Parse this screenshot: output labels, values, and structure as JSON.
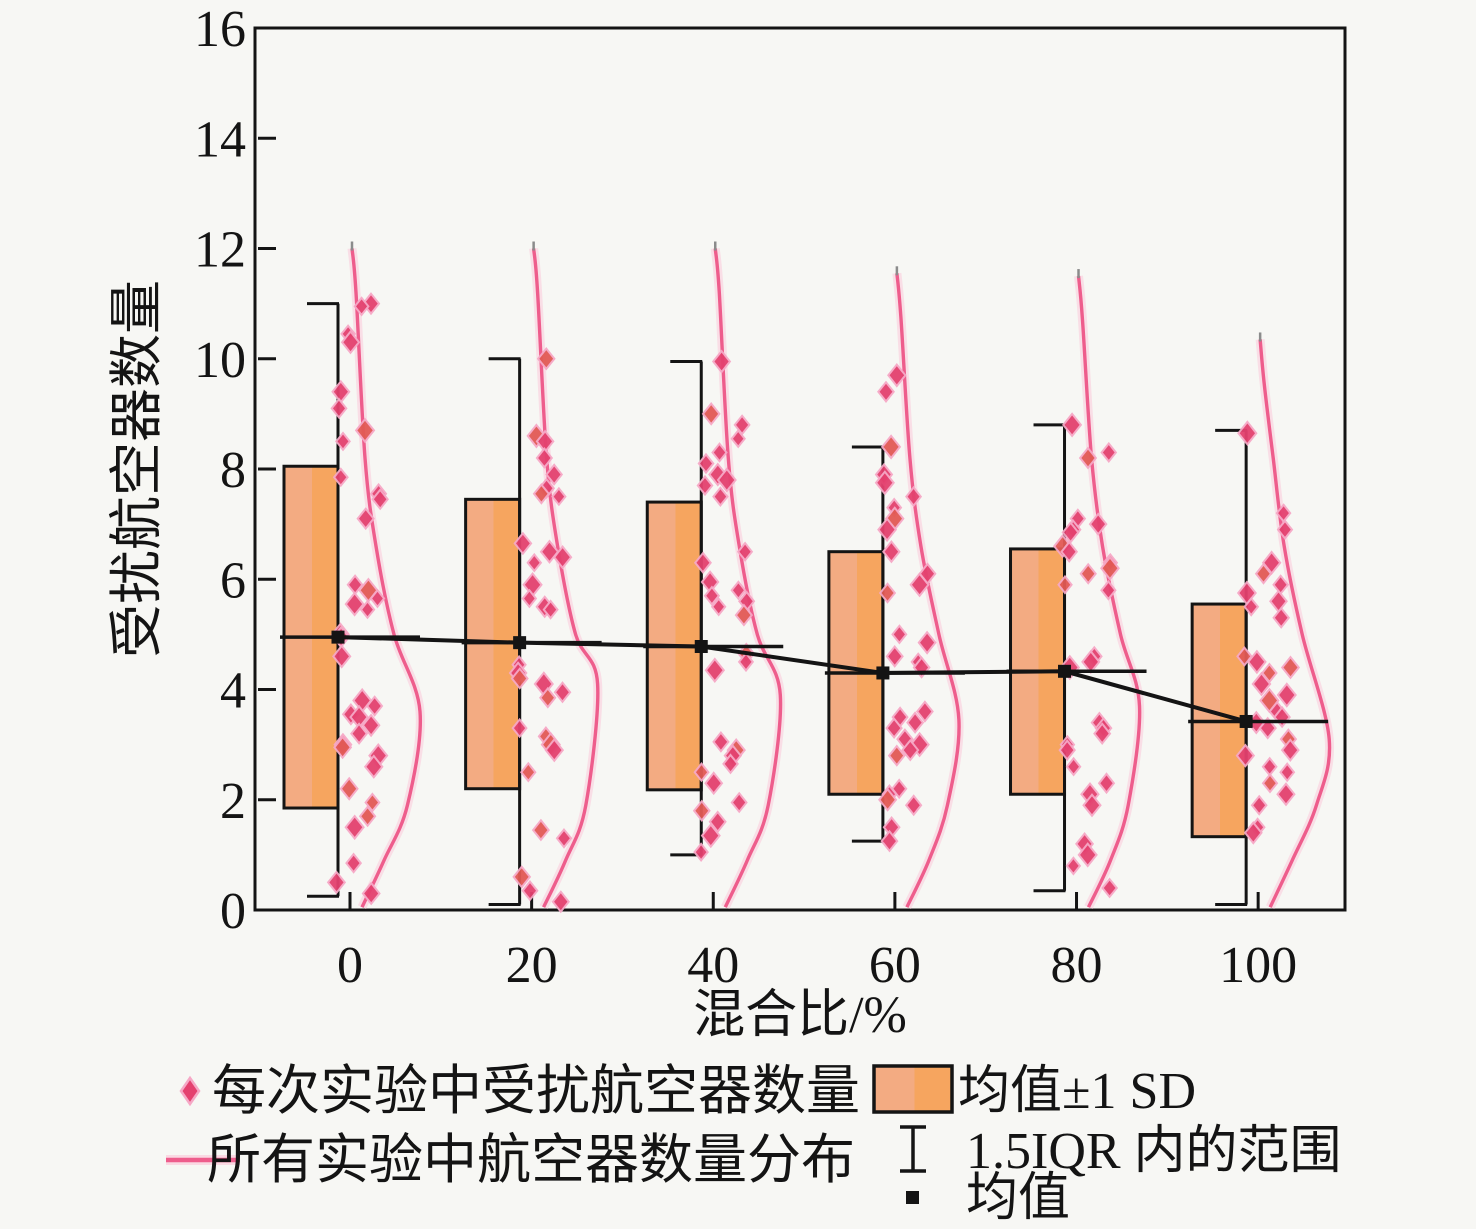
{
  "figure": {
    "background": "#f7f7f4",
    "y_axis": {
      "label": "受扰航空器数量",
      "min": 0,
      "max": 16,
      "tick_step": 2
    },
    "x_axis": {
      "label": "混合比/%",
      "tick_labels": [
        "0",
        "20",
        "40",
        "60",
        "80",
        "100"
      ]
    }
  },
  "legend": {
    "scatter_label": "每次实验中受扰航空器数量",
    "violin_label": "所有实验中航空器数量分布",
    "box_label": "均值±1 SD",
    "whisker_label": "1.5IQR 内的范围",
    "mean_label": "均值"
  },
  "colors": {
    "scatter_pink": "#e4416f",
    "scatter_halo": "#f6a8c6",
    "scatter_red": "#e25a55",
    "violin_pink": "#ee5d8c",
    "violin_halo": "#fcc6d8",
    "violin_tip_gray": "#8b8b8b",
    "box_orange": "#f6a55f",
    "box_orange_light": "#f3ab82",
    "line_black": "#141414"
  },
  "chart_data": {
    "type": "scatter",
    "subtype": "raincloud: jittered scatter + half-violin density + mean±1SD box + 1.5IQR whisker + mean line",
    "title": "",
    "xlabel": "混合比/%",
    "ylabel": "受扰航空器数量",
    "ylim": [
      0,
      16
    ],
    "grid": false,
    "legend_position": "bottom",
    "categories": [
      0,
      20,
      40,
      60,
      80,
      100
    ],
    "series": [
      {
        "category": 0,
        "mean": 4.95,
        "sd_low": 1.85,
        "sd_high": 8.05,
        "iqr_low": 0.25,
        "iqr_high": 11.0,
        "violin": {
          "top": 12.0,
          "peak": 3.6,
          "bulge": 70
        },
        "points": [
          11.0,
          10.95,
          10.45,
          10.3,
          9.4,
          9.1,
          8.7,
          8.5,
          7.85,
          7.55,
          7.45,
          7.1,
          5.9,
          5.8,
          5.65,
          5.55,
          5.45,
          5.0,
          4.95,
          4.6,
          3.8,
          3.7,
          3.55,
          3.5,
          3.35,
          3.2,
          3.0,
          2.95,
          2.8,
          2.6,
          2.2,
          1.95,
          1.7,
          1.5,
          0.85,
          0.5,
          0.3
        ]
      },
      {
        "category": 20,
        "mean": 4.85,
        "sd_low": 2.2,
        "sd_high": 7.45,
        "iqr_low": 0.1,
        "iqr_high": 10.0,
        "violin": {
          "top": 12.0,
          "peak": 4.1,
          "bulge": 66
        },
        "points": [
          10.0,
          8.6,
          8.5,
          8.2,
          7.9,
          7.65,
          7.55,
          7.5,
          6.65,
          6.5,
          6.4,
          6.3,
          5.9,
          5.65,
          5.5,
          5.45,
          4.45,
          4.3,
          4.2,
          4.1,
          3.95,
          3.85,
          3.3,
          3.15,
          3.0,
          2.9,
          2.5,
          1.45,
          1.3,
          0.6,
          0.35,
          0.15
        ]
      },
      {
        "category": 40,
        "mean": 4.78,
        "sd_low": 2.18,
        "sd_high": 7.4,
        "iqr_low": 1.0,
        "iqr_high": 9.95,
        "violin": {
          "top": 12.0,
          "peak": 3.9,
          "bulge": 67
        },
        "points": [
          9.95,
          9.0,
          8.8,
          8.55,
          8.3,
          8.1,
          7.9,
          7.8,
          7.7,
          7.5,
          6.5,
          6.3,
          5.95,
          5.8,
          5.7,
          5.6,
          5.5,
          5.35,
          4.65,
          4.5,
          4.35,
          3.05,
          2.9,
          2.8,
          2.65,
          2.5,
          2.3,
          1.95,
          1.8,
          1.6,
          1.35,
          1.05
        ]
      },
      {
        "category": 60,
        "mean": 4.3,
        "sd_low": 2.1,
        "sd_high": 6.5,
        "iqr_low": 1.25,
        "iqr_high": 8.4,
        "violin": {
          "top": 11.55,
          "peak": 3.45,
          "bulge": 64
        },
        "points": [
          9.7,
          9.4,
          8.4,
          7.9,
          7.75,
          7.5,
          7.3,
          7.1,
          6.9,
          6.5,
          6.1,
          5.9,
          5.75,
          5.0,
          4.85,
          4.6,
          4.5,
          4.4,
          3.6,
          3.5,
          3.4,
          3.3,
          3.1,
          3.0,
          2.9,
          2.8,
          2.2,
          2.1,
          2.0,
          1.9,
          1.5,
          1.25
        ]
      },
      {
        "category": 80,
        "mean": 4.33,
        "sd_low": 2.1,
        "sd_high": 6.55,
        "iqr_low": 0.35,
        "iqr_high": 8.8,
        "violin": {
          "top": 11.5,
          "peak": 3.7,
          "bulge": 63
        },
        "points": [
          8.8,
          8.3,
          8.2,
          7.1,
          7.0,
          6.9,
          6.85,
          6.6,
          6.5,
          6.3,
          6.2,
          6.1,
          5.9,
          5.8,
          4.6,
          4.5,
          4.4,
          3.4,
          3.3,
          3.2,
          3.0,
          2.9,
          2.6,
          2.3,
          2.1,
          1.9,
          1.2,
          1.0,
          0.8,
          0.4
        ]
      },
      {
        "category": 100,
        "mean": 3.42,
        "sd_low": 1.33,
        "sd_high": 5.55,
        "iqr_low": 0.1,
        "iqr_high": 8.7,
        "violin": {
          "top": 10.35,
          "peak": 3.1,
          "bulge": 71
        },
        "points": [
          8.65,
          7.2,
          6.9,
          6.3,
          6.1,
          5.9,
          5.75,
          5.6,
          5.5,
          5.3,
          4.6,
          4.5,
          4.4,
          4.3,
          4.1,
          3.9,
          3.8,
          3.6,
          3.5,
          3.4,
          3.3,
          3.1,
          2.9,
          2.8,
          2.6,
          2.5,
          2.3,
          2.1,
          1.9,
          1.5,
          1.4
        ]
      }
    ],
    "mean_line": {
      "x": [
        0,
        20,
        40,
        60,
        80,
        100
      ],
      "y": [
        4.95,
        4.85,
        4.78,
        4.3,
        4.33,
        3.42
      ]
    }
  }
}
